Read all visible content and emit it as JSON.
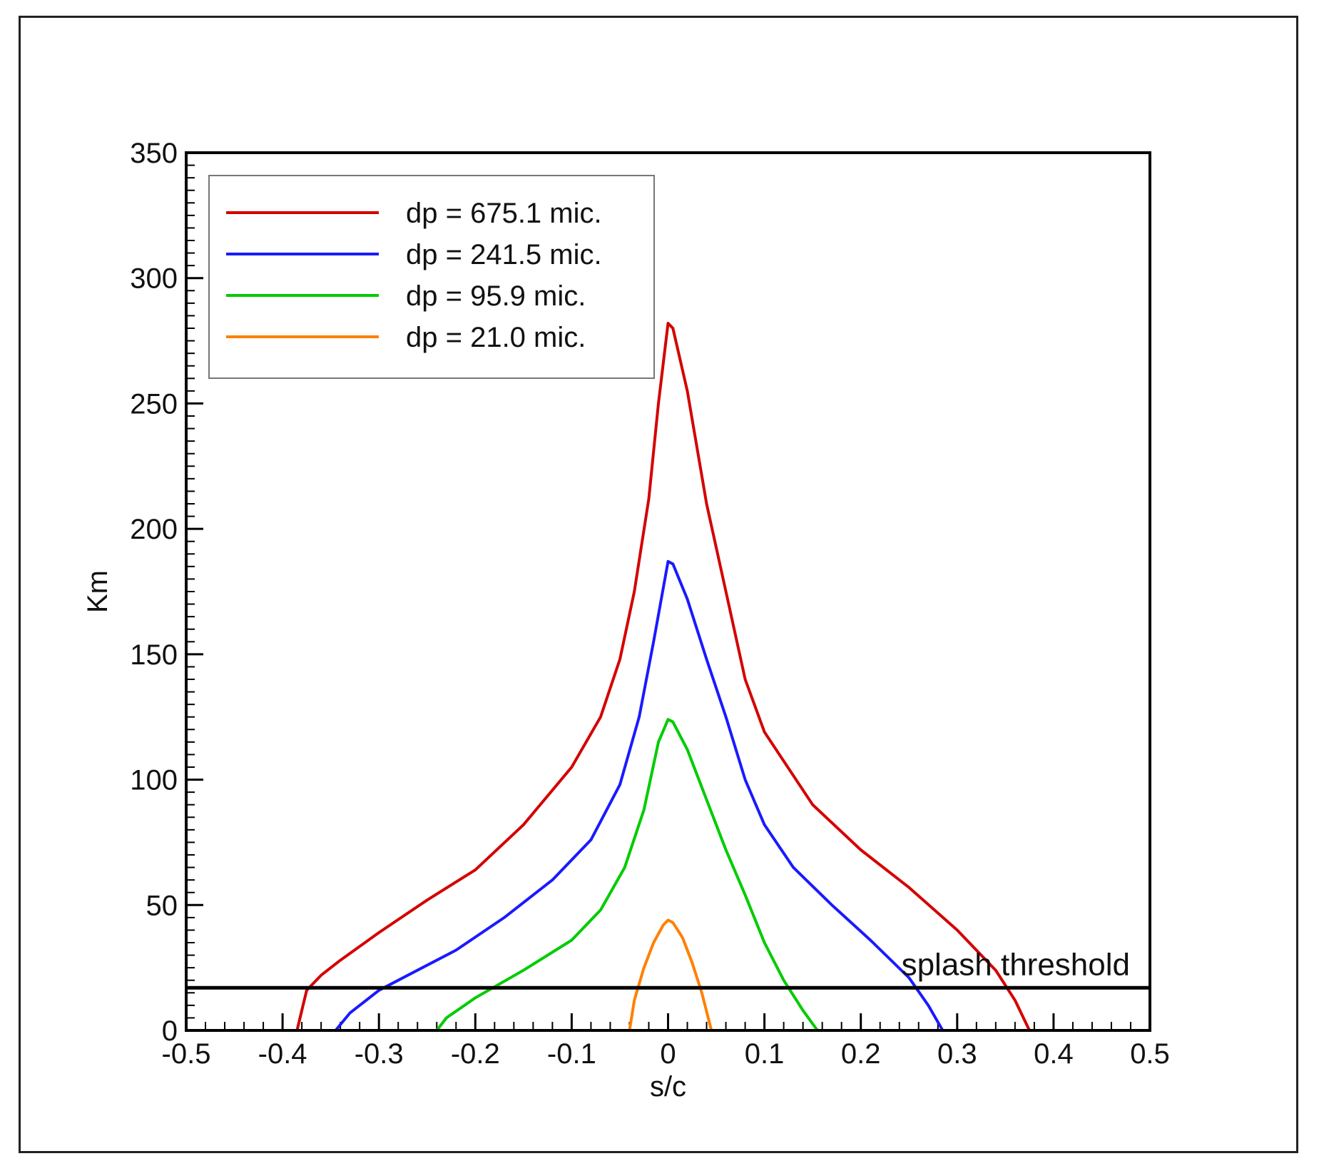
{
  "chart_data": {
    "type": "line",
    "xlabel": "s/c",
    "ylabel": "Km",
    "xlim": [
      -0.5,
      0.5
    ],
    "ylim": [
      0,
      350
    ],
    "xticks": [
      "-0.5",
      "-0.4",
      "-0.3",
      "-0.2",
      "-0.1",
      "0",
      "0.1",
      "0.2",
      "0.3",
      "0.4",
      "0.5"
    ],
    "yticks": [
      "0",
      "50",
      "100",
      "150",
      "200",
      "250",
      "300",
      "350"
    ],
    "legend_position": "top-left",
    "grid": false,
    "series": [
      {
        "name": "dp = 675.1 mic.",
        "color": "#d40000",
        "points": [
          [
            -0.385,
            0
          ],
          [
            -0.38,
            8
          ],
          [
            -0.375,
            16
          ],
          [
            -0.36,
            22
          ],
          [
            -0.34,
            28
          ],
          [
            -0.3,
            39
          ],
          [
            -0.25,
            52
          ],
          [
            -0.2,
            64
          ],
          [
            -0.15,
            82
          ],
          [
            -0.1,
            105
          ],
          [
            -0.07,
            125
          ],
          [
            -0.05,
            148
          ],
          [
            -0.035,
            175
          ],
          [
            -0.02,
            212
          ],
          [
            -0.01,
            250
          ],
          [
            0,
            282
          ],
          [
            0.005,
            280
          ],
          [
            0.02,
            255
          ],
          [
            0.04,
            210
          ],
          [
            0.06,
            175
          ],
          [
            0.08,
            140
          ],
          [
            0.1,
            119
          ],
          [
            0.15,
            90
          ],
          [
            0.2,
            72
          ],
          [
            0.25,
            57
          ],
          [
            0.3,
            40
          ],
          [
            0.34,
            24
          ],
          [
            0.36,
            12
          ],
          [
            0.375,
            0
          ]
        ]
      },
      {
        "name": "dp = 241.5 mic.",
        "color": "#1a1aff",
        "points": [
          [
            -0.345,
            0
          ],
          [
            -0.33,
            7
          ],
          [
            -0.3,
            16
          ],
          [
            -0.27,
            22
          ],
          [
            -0.22,
            32
          ],
          [
            -0.17,
            45
          ],
          [
            -0.12,
            60
          ],
          [
            -0.08,
            76
          ],
          [
            -0.05,
            98
          ],
          [
            -0.03,
            125
          ],
          [
            -0.015,
            155
          ],
          [
            0,
            187
          ],
          [
            0.005,
            186
          ],
          [
            0.02,
            172
          ],
          [
            0.04,
            148
          ],
          [
            0.06,
            125
          ],
          [
            0.08,
            100
          ],
          [
            0.1,
            82
          ],
          [
            0.13,
            65
          ],
          [
            0.17,
            50
          ],
          [
            0.21,
            36
          ],
          [
            0.25,
            21
          ],
          [
            0.27,
            10
          ],
          [
            0.285,
            0
          ]
        ]
      },
      {
        "name": "dp = 95.9 mic.",
        "color": "#00cc00",
        "points": [
          [
            -0.24,
            0
          ],
          [
            -0.23,
            5
          ],
          [
            -0.2,
            13
          ],
          [
            -0.15,
            24
          ],
          [
            -0.1,
            36
          ],
          [
            -0.07,
            48
          ],
          [
            -0.045,
            65
          ],
          [
            -0.025,
            88
          ],
          [
            -0.01,
            115
          ],
          [
            0,
            124
          ],
          [
            0.005,
            123
          ],
          [
            0.02,
            112
          ],
          [
            0.04,
            92
          ],
          [
            0.06,
            72
          ],
          [
            0.08,
            54
          ],
          [
            0.1,
            35
          ],
          [
            0.12,
            20
          ],
          [
            0.14,
            8
          ],
          [
            0.155,
            0
          ]
        ]
      },
      {
        "name": "dp = 21.0 mic.",
        "color": "#ff8000",
        "points": [
          [
            -0.04,
            0
          ],
          [
            -0.035,
            12
          ],
          [
            -0.025,
            25
          ],
          [
            -0.015,
            35
          ],
          [
            -0.005,
            42
          ],
          [
            0,
            44
          ],
          [
            0.005,
            43
          ],
          [
            0.015,
            37
          ],
          [
            0.025,
            27
          ],
          [
            0.035,
            15
          ],
          [
            0.045,
            0
          ]
        ]
      }
    ],
    "threshold": {
      "value": 17,
      "label": "splash threshold",
      "color": "#000000"
    }
  }
}
